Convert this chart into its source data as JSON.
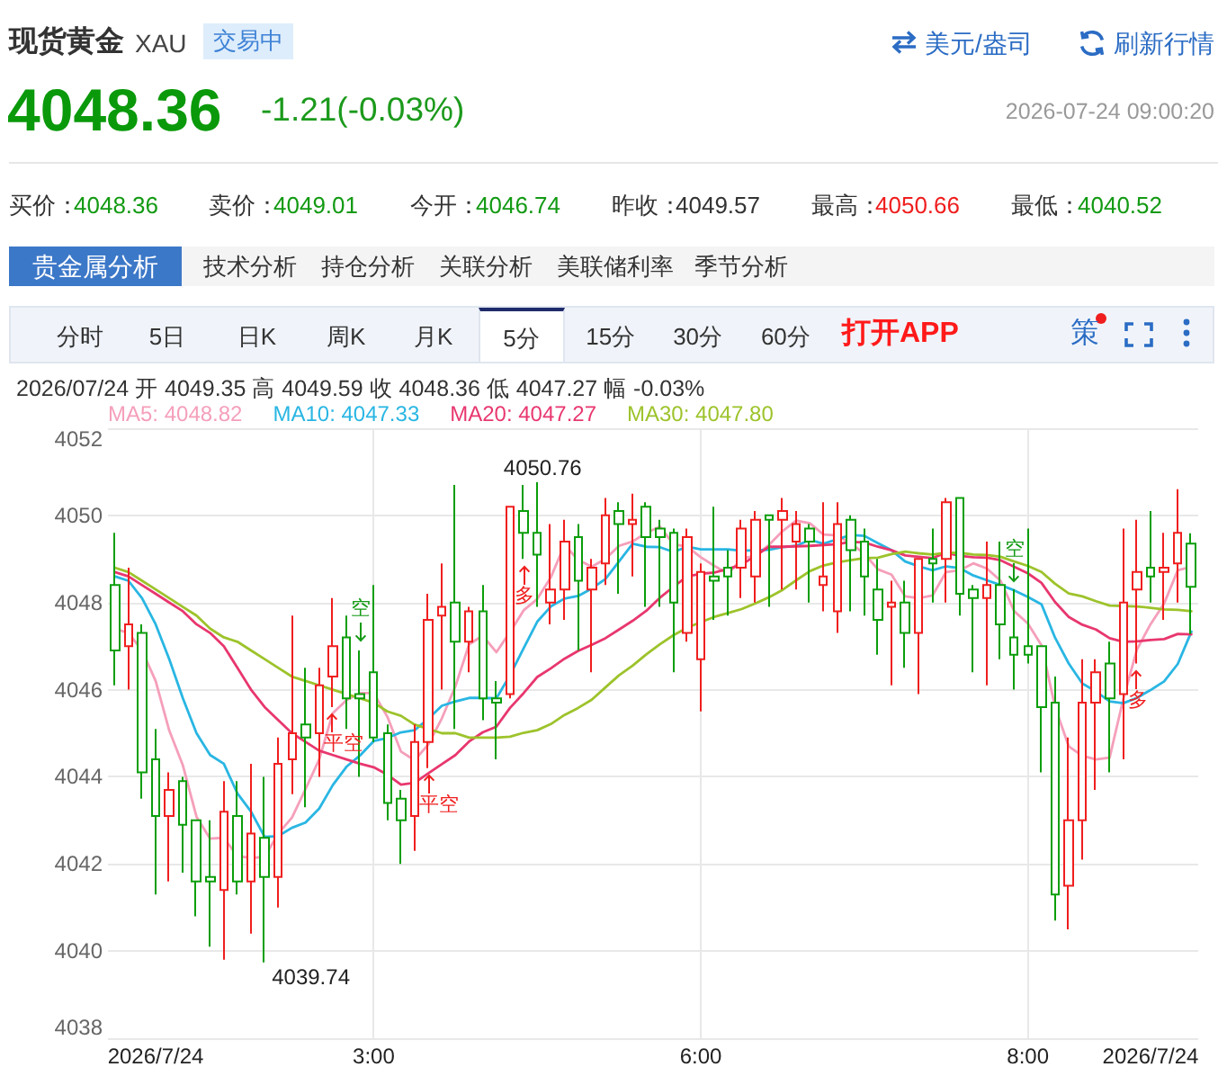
{
  "chart_data": {
    "type": "candlestick",
    "title": "现货黄金",
    "subtitle": "XAU",
    "categories": [
      null,
      null,
      null,
      "2026/7/24",
      null,
      null,
      null,
      null,
      null,
      null,
      null,
      null,
      null,
      null,
      null,
      null,
      null,
      null,
      null,
      "3:00",
      null,
      null,
      null,
      null,
      null,
      null,
      null,
      null,
      null,
      null,
      null,
      null,
      null,
      null,
      null,
      null,
      null,
      null,
      null,
      null,
      null,
      null,
      null,
      "6:00",
      null,
      null,
      null,
      null,
      null,
      null,
      null,
      null,
      null,
      null,
      null,
      null,
      null,
      null,
      null,
      null,
      null,
      null,
      null,
      null,
      null,
      null,
      null,
      "8:00",
      null,
      null,
      null,
      null,
      null,
      null,
      null,
      null,
      "2026/7/24",
      null,
      null,
      null
    ],
    "ohlc": [
      [
        4048.4,
        4049.6,
        4046.1,
        4046.9
      ],
      [
        4047.0,
        4048.8,
        4046.0,
        4047.5
      ],
      [
        4047.3,
        4047.5,
        4043.5,
        4044.1
      ],
      [
        4044.4,
        4045.1,
        4041.3,
        4043.1
      ],
      [
        4043.1,
        4044.1,
        4041.6,
        4043.7
      ],
      [
        4043.9,
        4044.0,
        4041.8,
        4042.9
      ],
      [
        4043.0,
        4043.0,
        4040.8,
        4041.6
      ],
      [
        4041.7,
        4043.0,
        4040.1,
        4041.6
      ],
      [
        4041.4,
        4043.9,
        4039.8,
        4043.2
      ],
      [
        4043.1,
        4043.9,
        4041.3,
        4041.6
      ],
      [
        4041.6,
        4044.3,
        4040.4,
        4042.7
      ],
      [
        4042.6,
        4044.0,
        4039.74,
        4041.7
      ],
      [
        4041.7,
        4044.9,
        4041.0,
        4044.3
      ],
      [
        4044.4,
        4047.7,
        4043.6,
        4045.0
      ],
      [
        4045.2,
        4046.5,
        4043.3,
        4044.9
      ],
      [
        4045.0,
        4046.5,
        4044.0,
        4046.1
      ],
      [
        4046.3,
        4048.1,
        4045.6,
        4047.0
      ],
      [
        4047.2,
        4047.7,
        4045.1,
        4045.8
      ],
      [
        4045.9,
        4046.9,
        4044.0,
        4045.8
      ],
      [
        4046.4,
        4048.4,
        4044.8,
        4044.9
      ],
      [
        4045.0,
        4045.2,
        4043.0,
        4043.4
      ],
      [
        4043.5,
        4043.7,
        4042.0,
        4043.0
      ],
      [
        4043.1,
        4045.2,
        4042.3,
        4044.8
      ],
      [
        4044.8,
        4048.2,
        4044.2,
        4047.6
      ],
      [
        4047.7,
        4048.9,
        4046.0,
        4047.9
      ],
      [
        4048.0,
        4050.7,
        4045.1,
        4047.1
      ],
      [
        4047.1,
        4047.9,
        4046.4,
        4047.8
      ],
      [
        4047.8,
        4048.4,
        4045.3,
        4045.8
      ],
      [
        4045.8,
        4046.2,
        4044.4,
        4045.7
      ],
      [
        4045.9,
        4050.2,
        4045.8,
        4050.2
      ],
      [
        4050.1,
        4050.7,
        4049.0,
        4049.6
      ],
      [
        4049.6,
        4050.76,
        4047.9,
        4049.1
      ],
      [
        4048.0,
        4049.8,
        4047.5,
        4048.3
      ],
      [
        4048.3,
        4049.9,
        4047.6,
        4049.4
      ],
      [
        4049.5,
        4049.8,
        4046.9,
        4048.5
      ],
      [
        4048.3,
        4049.0,
        4046.4,
        4048.8
      ],
      [
        4048.9,
        4050.4,
        4048.4,
        4050.0
      ],
      [
        4050.1,
        4050.3,
        4048.2,
        4049.8
      ],
      [
        4049.8,
        4050.5,
        4048.6,
        4049.9
      ],
      [
        4050.2,
        4050.3,
        4047.9,
        4049.5
      ],
      [
        4049.7,
        4049.9,
        4047.9,
        4049.5
      ],
      [
        4049.6,
        4049.7,
        4046.4,
        4048.0
      ],
      [
        4047.3,
        4049.7,
        4047.1,
        4049.5
      ],
      [
        4046.7,
        4048.9,
        4045.5,
        4048.7
      ],
      [
        4048.6,
        4050.2,
        4047.6,
        4048.5
      ],
      [
        4048.8,
        4049.2,
        4047.7,
        4048.6
      ],
      [
        4048.8,
        4049.9,
        4048.1,
        4049.7
      ],
      [
        4048.6,
        4050.1,
        4048.0,
        4049.9
      ],
      [
        4050.0,
        4050.0,
        4047.9,
        4049.9
      ],
      [
        4049.9,
        4050.4,
        4048.3,
        4050.1
      ],
      [
        4049.4,
        4050.1,
        4048.3,
        4049.8
      ],
      [
        4049.7,
        4049.8,
        4048.0,
        4049.4
      ],
      [
        4048.4,
        4050.3,
        4047.8,
        4048.6
      ],
      [
        4047.8,
        4050.3,
        4047.3,
        4049.8
      ],
      [
        4049.9,
        4050.0,
        4047.8,
        4049.2
      ],
      [
        4049.4,
        4049.7,
        4047.7,
        4048.6
      ],
      [
        4048.3,
        4049.0,
        4046.8,
        4047.6
      ],
      [
        4047.9,
        4048.5,
        4046.1,
        4048.0
      ],
      [
        4048.0,
        4048.5,
        4046.5,
        4047.3
      ],
      [
        4047.3,
        4049.0,
        4045.9,
        4049.0
      ],
      [
        4049.0,
        4049.7,
        4048.0,
        4048.9
      ],
      [
        4049.0,
        4050.4,
        4048.0,
        4050.3
      ],
      [
        4050.4,
        4050.4,
        4047.7,
        4048.2
      ],
      [
        4048.3,
        4048.4,
        4046.4,
        4048.1
      ],
      [
        4048.1,
        4049.4,
        4046.1,
        4048.4
      ],
      [
        4048.4,
        4049.4,
        4046.7,
        4047.5
      ],
      [
        4047.2,
        4048.3,
        4046.0,
        4046.8
      ],
      [
        4047.0,
        4049.7,
        4046.6,
        4046.8
      ],
      [
        4047.0,
        4047.0,
        4044.1,
        4045.6
      ],
      [
        4045.7,
        4046.3,
        4040.7,
        4041.3
      ],
      [
        4041.5,
        4044.9,
        4040.5,
        4043.0
      ],
      [
        4043.0,
        4046.7,
        4042.1,
        4045.7
      ],
      [
        4045.7,
        4046.7,
        4043.7,
        4046.4
      ],
      [
        4046.6,
        4047.1,
        4044.1,
        4045.8
      ],
      [
        4045.9,
        4049.7,
        4044.4,
        4048.0
      ],
      [
        4048.3,
        4049.9,
        4046.6,
        4048.7
      ],
      [
        4048.8,
        4050.1,
        4048.0,
        4048.6
      ],
      [
        4048.7,
        4049.6,
        4047.6,
        4048.8
      ],
      [
        4048.9,
        4050.6,
        4048.0,
        4049.6
      ],
      [
        4049.35,
        4049.59,
        4047.27,
        4048.36
      ]
    ],
    "colors": [
      "#0a9e0a",
      "#f01e1e",
      "#0a9e0a",
      "#0a9e0a",
      "#f01e1e",
      "#0a9e0a",
      "#0a9e0a",
      "#0a9e0a",
      "#f01e1e",
      "#0a9e0a",
      "#f01e1e",
      "#0a9e0a",
      "#f01e1e",
      "#f01e1e",
      "#0a9e0a",
      "#f01e1e",
      "#f01e1e",
      "#0a9e0a",
      "#0a9e0a",
      "#0a9e0a",
      "#0a9e0a",
      "#0a9e0a",
      "#f01e1e",
      "#f01e1e",
      "#f01e1e",
      "#0a9e0a",
      "#f01e1e",
      "#0a9e0a",
      "#0a9e0a",
      "#f01e1e",
      "#0a9e0a",
      "#0a9e0a",
      "#f01e1e",
      "#f01e1e",
      "#0a9e0a",
      "#f01e1e",
      "#f01e1e",
      "#0a9e0a",
      "#f01e1e",
      "#0a9e0a",
      "#0a9e0a",
      "#0a9e0a",
      "#f01e1e",
      "#f01e1e",
      "#0a9e0a",
      "#0a9e0a",
      "#f01e1e",
      "#f01e1e",
      "#0a9e0a",
      "#f01e1e",
      "#f01e1e",
      "#0a9e0a",
      "#f01e1e",
      "#f01e1e",
      "#0a9e0a",
      "#0a9e0a",
      "#0a9e0a",
      "#f01e1e",
      "#0a9e0a",
      "#f01e1e",
      "#0a9e0a",
      "#f01e1e",
      "#0a9e0a",
      "#0a9e0a",
      "#f01e1e",
      "#0a9e0a",
      "#0a9e0a",
      "#0a9e0a",
      "#0a9e0a",
      "#0a9e0a",
      "#f01e1e",
      "#f01e1e",
      "#f01e1e",
      "#0a9e0a",
      "#f01e1e",
      "#f01e1e",
      "#0a9e0a",
      "#f01e1e",
      "#f01e1e",
      "#0a9e0a"
    ],
    "series": [
      {
        "name": "MA5: 4048.82",
        "type": "line",
        "color": "#f59fba",
        "values": [
          4047.4,
          4047.3,
          4046.9,
          4046.2,
          4045.06,
          4044.26,
          4043.08,
          4042.58,
          4042.6,
          4042.18,
          4042.14,
          4042.16,
          4042.7,
          4043.06,
          4043.72,
          4044.4,
          4045.46,
          4045.76,
          4045.92,
          4045.92,
          4045.38,
          4044.58,
          4044.38,
          4044.74,
          4045.34,
          4046.08,
          4047.04,
          4047.24,
          4046.86,
          4047.32,
          4047.82,
          4048.08,
          4048.58,
          4049.32,
          4048.98,
          4048.82,
          4049.0,
          4049.3,
          4049.4,
          4049.6,
          4049.74,
          4049.34,
          4049.28,
          4049.04,
          4048.84,
          4048.66,
          4049.0,
          4049.08,
          4049.32,
          4049.64,
          4049.88,
          4049.82,
          4049.56,
          4049.54,
          4049.36,
          4049.12,
          4048.76,
          4048.64,
          4048.14,
          4048.1,
          4048.16,
          4048.7,
          4048.74,
          4048.9,
          4048.78,
          4048.5,
          4047.8,
          4047.52,
          4047.02,
          4045.6,
          4044.7,
          4044.48,
          4044.4,
          4044.44,
          4045.78,
          4046.92,
          4047.5,
          4047.98,
          4048.74,
          4048.82
        ]
      },
      {
        "name": "MA10: 4047.33",
        "type": "line",
        "color": "#29b6e3",
        "values": [
          4048.6,
          4048.5,
          4048.1,
          4047.5,
          4046.7,
          4045.8,
          4045.0,
          4044.5,
          4044.3,
          4043.62,
          4043.2,
          4042.62,
          4042.64,
          4042.83,
          4042.95,
          4043.27,
          4043.81,
          4044.23,
          4044.49,
          4044.82,
          4044.89,
          4045.02,
          4045.07,
          4045.33,
          4045.63,
          4045.73,
          4045.81,
          4045.81,
          4045.8,
          4046.33,
          4046.95,
          4047.56,
          4047.91,
          4048.09,
          4048.15,
          4048.32,
          4048.54,
          4048.94,
          4049.35,
          4049.28,
          4049.27,
          4049.16,
          4049.28,
          4049.22,
          4049.22,
          4049.22,
          4049.19,
          4049.2,
          4049.21,
          4049.27,
          4049.3,
          4049.44,
          4049.35,
          4049.45,
          4049.55,
          4049.53,
          4049.36,
          4049.2,
          4048.94,
          4048.83,
          4048.74,
          4048.83,
          4048.79,
          4048.62,
          4048.51,
          4048.4,
          4048.28,
          4048.13,
          4047.96,
          4047.19,
          4046.6,
          4046.14,
          4045.96,
          4045.73,
          4045.69,
          4045.81,
          4045.99,
          4046.19,
          4046.59,
          4047.33
        ]
      },
      {
        "name": "MA20: 4047.27",
        "type": "line",
        "color": "#e8376f",
        "values": [
          4048.7,
          4048.6,
          4048.4,
          4048.2,
          4048.0,
          4047.8,
          4047.5,
          4047.3,
          4047.0,
          4046.5,
          4046.0,
          4045.6,
          4045.3,
          4045.0,
          4044.8,
          4044.6,
          4044.5,
          4044.4,
          4044.3,
          4044.22,
          4044.05,
          4043.82,
          4043.86,
          4044.08,
          4044.29,
          4044.5,
          4044.81,
          4045.02,
          4045.15,
          4045.58,
          4045.92,
          4046.29,
          4046.49,
          4046.71,
          4046.89,
          4047.03,
          4047.18,
          4047.38,
          4047.58,
          4047.81,
          4048.11,
          4048.36,
          4048.6,
          4048.66,
          4048.69,
          4048.77,
          4048.87,
          4049.07,
          4049.28,
          4049.28,
          4049.29,
          4049.3,
          4049.32,
          4049.34,
          4049.39,
          4049.38,
          4049.28,
          4049.2,
          4049.08,
          4049.05,
          4049.02,
          4049.14,
          4049.07,
          4049.04,
          4049.03,
          4048.97,
          4048.82,
          4048.67,
          4048.45,
          4048.01,
          4047.67,
          4047.49,
          4047.38,
          4047.18,
          4047.1,
          4047.11,
          4047.14,
          4047.16,
          4047.28,
          4047.27
        ]
      },
      {
        "name": "MA30: 4047.80",
        "type": "line",
        "color": "#9dc32b",
        "values": [
          4048.8,
          4048.7,
          4048.5,
          4048.3,
          4048.1,
          4047.9,
          4047.7,
          4047.4,
          4047.2,
          4047.1,
          4046.9,
          4046.7,
          4046.5,
          4046.3,
          4046.2,
          4046.1,
          4046.0,
          4045.9,
          4045.8,
          4045.7,
          4045.5,
          4045.4,
          4045.2,
          4045.1,
          4045.0,
          4045.0,
          4044.9,
          4044.9,
          4044.9,
          4044.92,
          4045.01,
          4045.07,
          4045.21,
          4045.42,
          4045.58,
          4045.77,
          4046.05,
          4046.33,
          4046.55,
          4046.81,
          4047.04,
          4047.25,
          4047.42,
          4047.55,
          4047.67,
          4047.76,
          4047.85,
          4047.98,
          4048.12,
          4048.29,
          4048.51,
          4048.72,
          4048.85,
          4048.92,
          4048.97,
          4049.02,
          4049.03,
          4049.11,
          4049.17,
          4049.13,
          4049.1,
          4049.14,
          4049.14,
          4049.1,
          4049.09,
          4049.05,
          4048.94,
          4048.84,
          4048.7,
          4048.43,
          4048.21,
          4048.14,
          4048.03,
          4047.93,
          4047.92,
          4047.91,
          4047.88,
          4047.84,
          4047.83,
          4047.8
        ]
      }
    ],
    "ylim": [
      4038,
      4052
    ],
    "yticks": [
      4038,
      4040,
      4042,
      4044,
      4046,
      4048,
      4050,
      4052
    ],
    "grid": true,
    "legend": "top left",
    "marker": "none",
    "annotations": [
      "交易中",
      "美元/盎司",
      "刷新行情",
      "4048.36",
      "-1.21(-0.03%)",
      "2026-07-24 09:00:20",
      "买价：",
      "4048.36",
      "卖价：",
      "4049.01",
      "今开：",
      "4046.74",
      "昨收：",
      "4049.57",
      "最高：",
      "4050.66",
      "最低：",
      "4040.52",
      "贵金属分析",
      "技术分析",
      "持仓分析",
      "关联分析",
      "美联储利率",
      "季节分析",
      "分时",
      "5日",
      "日K",
      "周K",
      "月K",
      "5分",
      "15分",
      "30分",
      "60分",
      "打开APP",
      "策",
      "2026/07/24 开 4049.35 高 4049.59 收 4048.36 低 4047.27 幅 -0.03%",
      {
        "text": "4050.76",
        "y": 4050.76
      },
      "4039.74",
      "空",
      "平空",
      "平空",
      "多",
      "空",
      "多"
    ]
  }
}
